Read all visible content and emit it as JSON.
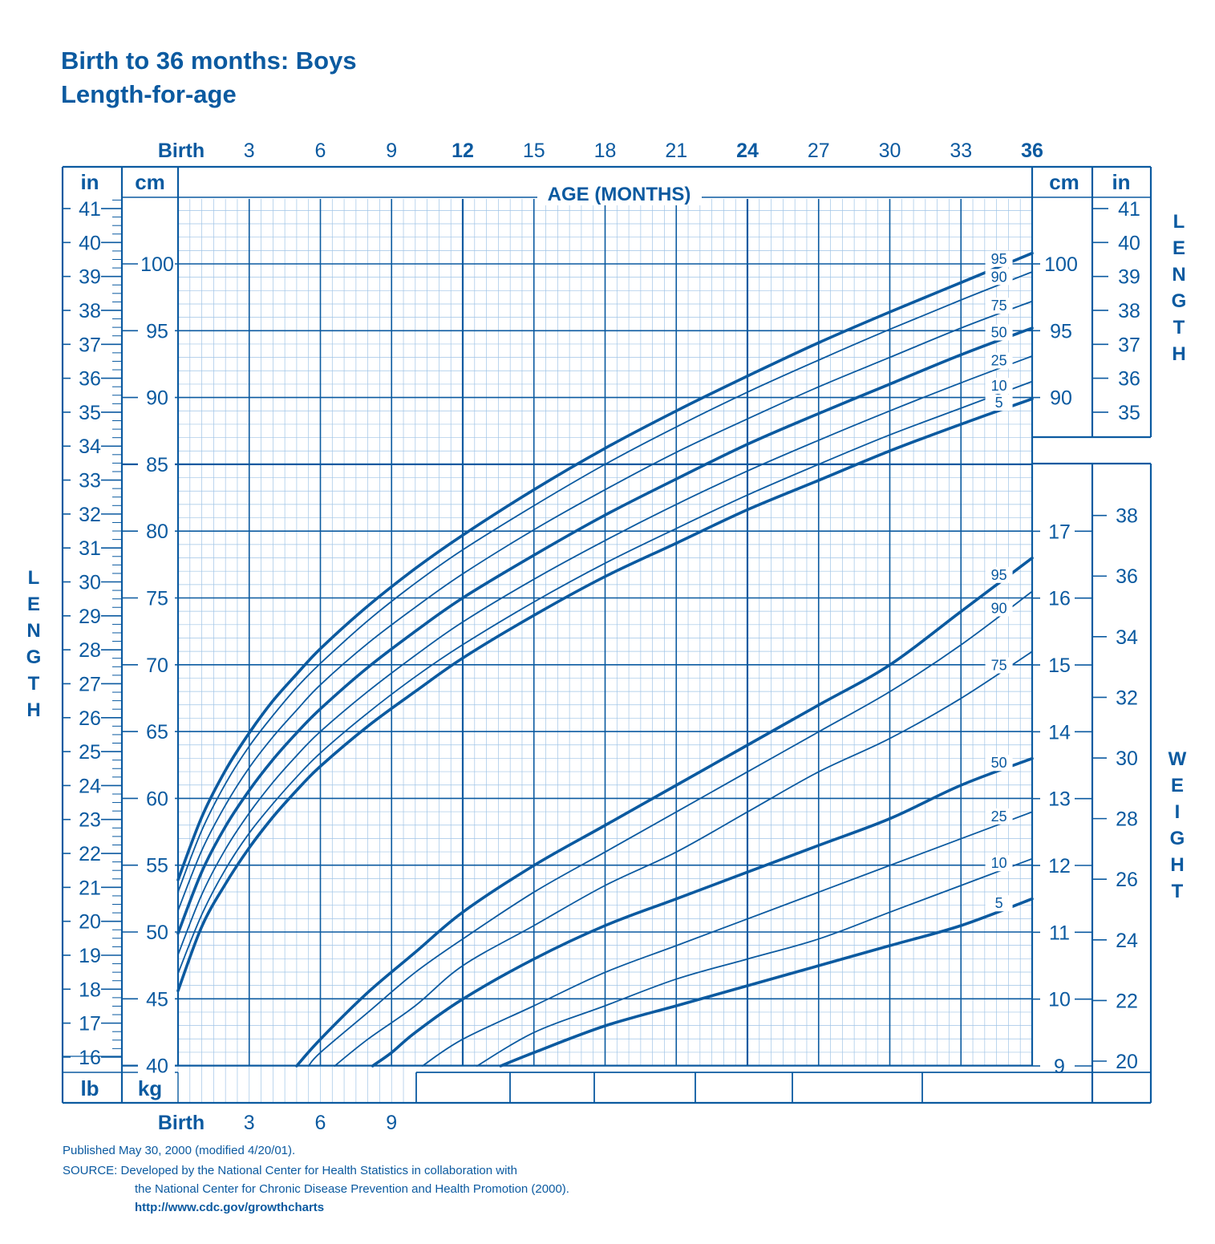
{
  "title_line1": "Birth to 36 months: Boys",
  "title_line2": "Length-for-age",
  "footer": {
    "published": "Published May 30, 2000 (modified 4/20/01).",
    "source_line1": "SOURCE: Developed by the National Center for Health Statistics in collaboration with",
    "source_line2": "the National Center for Chronic Disease Prevention and Health Promotion (2000).",
    "url": "http://www.cdc.gov/growthcharts"
  },
  "colors": {
    "main": "#0b5aa0",
    "minor_grid": "#9fc4e6",
    "background": "#ffffff"
  },
  "chart_data": {
    "type": "line",
    "title": "Birth to 36 months: Boys Length-for-age",
    "xlabel": "AGE (MONTHS)",
    "x_ticks_top": [
      "Birth",
      "3",
      "6",
      "9",
      "12",
      "15",
      "18",
      "21",
      "24",
      "27",
      "30",
      "33",
      "36"
    ],
    "x_ticks_bold": [
      "Birth",
      "12",
      "24",
      "36"
    ],
    "x_ticks_bottom": [
      "Birth",
      "3",
      "6",
      "9"
    ],
    "xlim": [
      0,
      36
    ],
    "length_axis": {
      "label": "LENGTH",
      "unit_cm": "cm",
      "unit_in": "in",
      "ylim_cm": [
        40,
        104
      ],
      "cm_ticks": [
        40,
        45,
        50,
        55,
        60,
        65,
        70,
        75,
        80,
        85,
        90,
        95,
        100
      ],
      "in_ticks": [
        16,
        17,
        18,
        19,
        20,
        21,
        22,
        23,
        24,
        25,
        26,
        27,
        28,
        29,
        30,
        31,
        32,
        33,
        34,
        35,
        36,
        37,
        38,
        39,
        40,
        41
      ],
      "right_cm_ticks": [
        90,
        95,
        100
      ],
      "right_in_ticks": [
        35,
        36,
        37,
        38,
        39,
        40,
        41
      ]
    },
    "weight_axis": {
      "label": "WEIGHT",
      "unit_kg": "kg",
      "unit_lb": "lb",
      "kg_ticks": [
        9,
        10,
        11,
        12,
        13,
        14,
        15,
        16,
        17
      ],
      "lb_ticks": [
        20,
        22,
        24,
        26,
        28,
        30,
        32,
        34,
        36,
        38
      ]
    },
    "length_series": [
      {
        "name": "95",
        "x": [
          0,
          1,
          2,
          3,
          4,
          5,
          6,
          8,
          10,
          12,
          15,
          18,
          21,
          24,
          27,
          30,
          33,
          36
        ],
        "values": [
          53.9,
          58.6,
          62.1,
          64.9,
          67.3,
          69.3,
          71.2,
          74.4,
          77.2,
          79.7,
          83.1,
          86.2,
          89.0,
          91.6,
          94.1,
          96.4,
          98.6,
          100.8
        ]
      },
      {
        "name": "90",
        "x": [
          0,
          1,
          2,
          3,
          4,
          5,
          6,
          8,
          10,
          12,
          15,
          18,
          21,
          24,
          27,
          30,
          33,
          36
        ],
        "values": [
          53.0,
          57.6,
          61.1,
          63.9,
          66.2,
          68.3,
          70.1,
          73.3,
          76.1,
          78.6,
          81.9,
          85.0,
          87.8,
          90.4,
          92.8,
          95.1,
          97.3,
          99.4
        ]
      },
      {
        "name": "75",
        "x": [
          0,
          1,
          2,
          3,
          4,
          5,
          6,
          8,
          10,
          12,
          15,
          18,
          21,
          24,
          27,
          30,
          33,
          36
        ],
        "values": [
          51.6,
          56.1,
          59.5,
          62.3,
          64.6,
          66.6,
          68.5,
          71.6,
          74.3,
          76.8,
          80.1,
          83.1,
          85.9,
          88.4,
          90.8,
          93.0,
          95.2,
          97.2
        ]
      },
      {
        "name": "50",
        "x": [
          0,
          1,
          2,
          3,
          4,
          5,
          6,
          8,
          10,
          12,
          15,
          18,
          21,
          24,
          27,
          30,
          33,
          36
        ],
        "values": [
          49.9,
          54.5,
          57.9,
          60.6,
          62.9,
          64.9,
          66.7,
          69.8,
          72.5,
          75.0,
          78.2,
          81.2,
          83.9,
          86.5,
          88.8,
          91.0,
          93.2,
          95.2
        ]
      },
      {
        "name": "25",
        "x": [
          0,
          1,
          2,
          3,
          4,
          5,
          6,
          8,
          10,
          12,
          15,
          18,
          21,
          24,
          27,
          30,
          33,
          36
        ],
        "values": [
          48.3,
          52.8,
          56.2,
          58.9,
          61.2,
          63.2,
          65.0,
          68.0,
          70.7,
          73.2,
          76.4,
          79.3,
          82.0,
          84.5,
          86.8,
          89.0,
          91.1,
          93.1
        ]
      },
      {
        "name": "10",
        "x": [
          0,
          1,
          2,
          3,
          4,
          5,
          6,
          8,
          10,
          12,
          15,
          18,
          21,
          24,
          27,
          30,
          33,
          36
        ],
        "values": [
          46.9,
          51.3,
          54.7,
          57.4,
          59.6,
          61.6,
          63.4,
          66.4,
          69.1,
          71.5,
          74.7,
          77.6,
          80.2,
          82.7,
          85.0,
          87.2,
          89.2,
          91.2
        ]
      },
      {
        "name": "5",
        "x": [
          0,
          1,
          2,
          3,
          4,
          5,
          6,
          8,
          10,
          12,
          15,
          18,
          21,
          24,
          27,
          30,
          33,
          36
        ],
        "values": [
          45.6,
          50.4,
          53.6,
          56.3,
          58.6,
          60.6,
          62.4,
          65.4,
          68.0,
          70.5,
          73.7,
          76.6,
          79.1,
          81.6,
          83.8,
          86.0,
          88.0,
          89.9
        ]
      }
    ],
    "weight_series": [
      {
        "name": "95",
        "x": [
          5,
          6,
          8,
          10,
          12,
          15,
          18,
          21,
          24,
          27,
          30,
          33,
          36
        ],
        "values": [
          9.0,
          9.4,
          10.1,
          10.7,
          11.3,
          12.0,
          12.6,
          13.2,
          13.8,
          14.4,
          15.0,
          15.8,
          16.6
        ]
      },
      {
        "name": "90",
        "x": [
          5.5,
          6,
          8,
          10,
          12,
          15,
          18,
          21,
          24,
          27,
          30,
          33,
          36
        ],
        "values": [
          9.0,
          9.2,
          9.8,
          10.4,
          10.9,
          11.6,
          12.2,
          12.8,
          13.4,
          14.0,
          14.6,
          15.3,
          16.1
        ]
      },
      {
        "name": "75",
        "x": [
          6.6,
          8,
          10,
          12,
          15,
          18,
          21,
          24,
          27,
          30,
          33,
          36
        ],
        "values": [
          9.0,
          9.4,
          9.9,
          10.5,
          11.1,
          11.7,
          12.2,
          12.8,
          13.4,
          13.9,
          14.5,
          15.2
        ]
      },
      {
        "name": "50",
        "x": [
          8.2,
          9,
          10,
          12,
          15,
          18,
          21,
          24,
          27,
          30,
          33,
          36
        ],
        "values": [
          9.0,
          9.2,
          9.5,
          10.0,
          10.6,
          11.1,
          11.5,
          11.9,
          12.3,
          12.7,
          13.2,
          13.6
        ]
      },
      {
        "name": "25",
        "x": [
          10.3,
          12,
          15,
          18,
          21,
          24,
          27,
          30,
          33,
          36
        ],
        "values": [
          9.0,
          9.4,
          9.9,
          10.4,
          10.8,
          11.2,
          11.6,
          12.0,
          12.4,
          12.8
        ]
      },
      {
        "name": "10",
        "x": [
          12.6,
          15,
          18,
          21,
          24,
          27,
          30,
          33,
          36
        ],
        "values": [
          9.0,
          9.5,
          9.9,
          10.3,
          10.6,
          10.9,
          11.3,
          11.7,
          12.1
        ]
      },
      {
        "name": "5",
        "x": [
          13.6,
          15,
          18,
          21,
          24,
          27,
          30,
          33,
          36
        ],
        "values": [
          9.0,
          9.2,
          9.6,
          9.9,
          10.2,
          10.5,
          10.8,
          11.1,
          11.5
        ]
      }
    ],
    "grid": true
  }
}
